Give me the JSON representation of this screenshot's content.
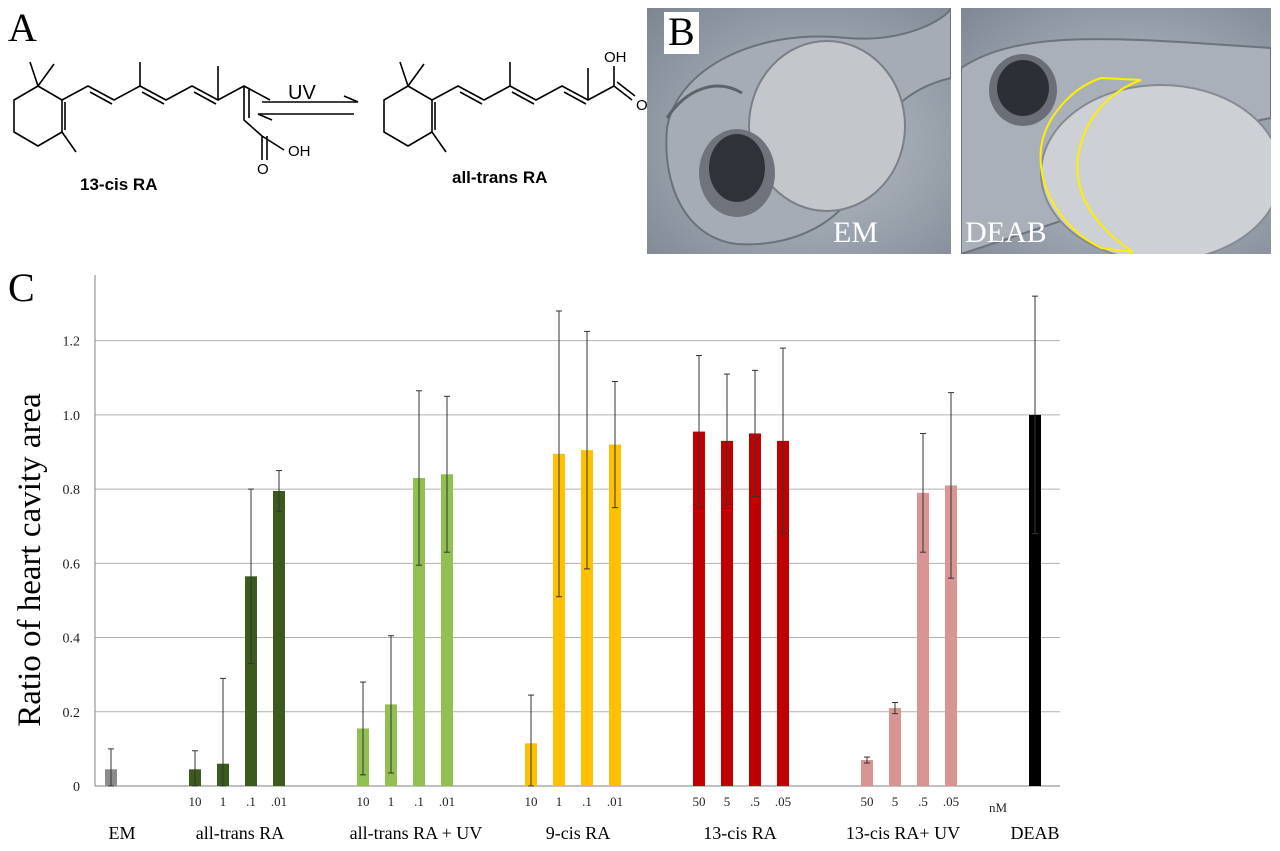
{
  "panels": {
    "a": "A",
    "b": "B",
    "c": "C"
  },
  "chemistry": {
    "left_name": "13-cis RA",
    "right_name": "all-trans RA",
    "reaction_label": "UV",
    "atom_oh": "OH",
    "atom_o": "O"
  },
  "photos": [
    {
      "label": "EM"
    },
    {
      "label": "DEAB"
    }
  ],
  "colors": {
    "gray": "#8c8c8c",
    "dark_green": "#3d5a1e",
    "light_green": "#92c050",
    "yellow": "#ffc000",
    "red": "#c00000",
    "pink": "#d99594",
    "black": "#000000",
    "outline": "#ffef00"
  },
  "chart_data": {
    "type": "bar",
    "ylabel": "Ratio of heart cavity area",
    "ylim": [
      0,
      1.35
    ],
    "yticks": [
      "0",
      "0.2",
      "0.4",
      "0.6",
      "0.8",
      "1.0",
      "1.2"
    ],
    "grid": true,
    "unit_label": "nM",
    "groups": [
      {
        "name": "EM",
        "color": "gray",
        "doses": [
          ""
        ],
        "values": [
          0.045
        ],
        "errors": [
          0.055
        ]
      },
      {
        "name": "all-trans RA",
        "color": "dark_green",
        "doses": [
          "10",
          "1",
          ".1",
          ".01"
        ],
        "values": [
          0.045,
          0.06,
          0.565,
          0.795
        ],
        "errors": [
          0.05,
          0.23,
          0.235,
          0.055
        ]
      },
      {
        "name": "all-trans RA + UV",
        "color": "light_green",
        "doses": [
          "10",
          "1",
          ".1",
          ".01"
        ],
        "values": [
          0.155,
          0.22,
          0.83,
          0.84
        ],
        "errors": [
          0.125,
          0.185,
          0.235,
          0.21
        ]
      },
      {
        "name": "9-cis RA",
        "color": "yellow",
        "doses": [
          "10",
          "1",
          ".1",
          ".01"
        ],
        "values": [
          0.115,
          0.895,
          0.905,
          0.92
        ],
        "errors": [
          0.13,
          0.385,
          0.32,
          0.17
        ]
      },
      {
        "name": "13-cis RA",
        "color": "red",
        "doses": [
          "50",
          "5",
          ".5",
          ".05"
        ],
        "values": [
          0.955,
          0.93,
          0.95,
          0.93
        ],
        "errors": [
          0.205,
          0.18,
          0.17,
          0.25
        ]
      },
      {
        "name": "13-cis RA+ UV",
        "color": "pink",
        "doses": [
          "50",
          "5",
          ".5",
          ".05"
        ],
        "values": [
          0.07,
          0.21,
          0.79,
          0.81
        ],
        "errors": [
          0.008,
          0.015,
          0.16,
          0.25
        ]
      },
      {
        "name": "DEAB",
        "color": "black",
        "doses": [
          ""
        ],
        "values": [
          1.0
        ],
        "errors": [
          0.32
        ]
      }
    ]
  }
}
